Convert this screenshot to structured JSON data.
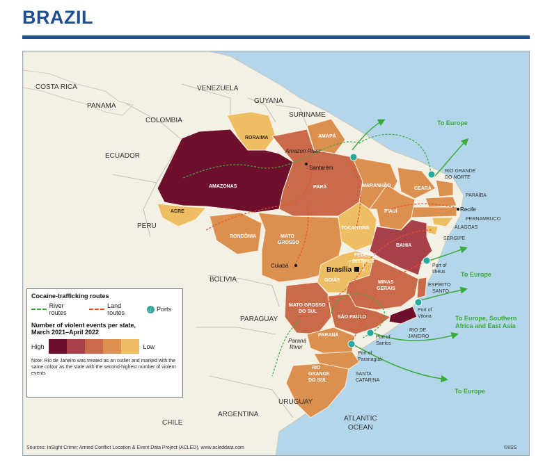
{
  "title": "BRAZIL",
  "countries": {
    "costa_rica": "COSTA RICA",
    "panama": "PANAMA",
    "venezuela": "VENEZUELA",
    "guyana": "GUYANA",
    "suriname": "SURINAME",
    "colombia": "COLOMBIA",
    "ecuador": "ECUADOR",
    "peru": "PERU",
    "bolivia": "BOLIVIA",
    "paraguay": "PARAGUAY",
    "chile": "CHILE",
    "argentina": "ARGENTINA",
    "uruguay": "URUGUAY",
    "atlantic_1": "ATLANTIC",
    "atlantic_2": "OCEAN"
  },
  "states": {
    "roraima": "RORAIMA",
    "amapa": "AMAPÁ",
    "amazonas": "AMAZONAS",
    "acre": "ACRE",
    "para": "PARÁ",
    "maranhao": "MARANHÃO",
    "ceara": "CEARÁ",
    "rgn_1": "RIO GRANDE",
    "rgn_2": "DO NORTE",
    "paraiba": "PARAÍBA",
    "pernambuco": "PERNAMBUCO",
    "alagoas": "ALAGOAS",
    "sergipe": "SERGIPE",
    "piaui": "PIAUÍ",
    "tocantins": "TOCANTINS",
    "rondonia": "RONDÔNIA",
    "mato_grosso_1": "MATO",
    "mato_grosso_2": "GROSSO",
    "bahia": "BAHIA",
    "federal_1": "FEDERAL",
    "federal_2": "DISTRICT",
    "goias": "GOIÁS",
    "minas_1": "MINAS",
    "minas_2": "GERAIS",
    "espirito_1": "ESPÍRITO",
    "espirito_2": "SANTO",
    "mgs_1": "MATO GROSSO",
    "mgs_2": "DO SUL",
    "sao_paulo": "SÃO PAULO",
    "rio_1": "RIO DE",
    "rio_2": "JANEIRO",
    "parana": "PARANÁ",
    "santa_1": "SANTA",
    "santa_2": "CATARINA",
    "rgs_1": "RIO",
    "rgs_2": "GRANDE",
    "rgs_3": "DO SUL"
  },
  "places": {
    "amazon_river": "Amazon River",
    "santarem": "Santarém",
    "recife": "Recife",
    "brasilia": "Brasília",
    "cuiaba": "Cuiabá",
    "parana_river_1": "Paraná",
    "parana_river_2": "River",
    "ilheus_1": "Port of",
    "ilheus_2": "Ilhéus",
    "vitoria_1": "Port of",
    "vitoria_2": "Vitória",
    "santos_1": "Port of",
    "santos_2": "Santos",
    "paranagua_1": "Port of",
    "paranagua_2": "Paranaguá"
  },
  "destinations": {
    "europe_top": "To Europe",
    "europe_mid": "To Europe",
    "europe_south_1": "To Europe, Southern",
    "europe_south_2": "Africa and East Asia",
    "europe_bottom": "To Europe"
  },
  "legend": {
    "title": "Cocaine-trafficking routes",
    "river": "River routes",
    "land": "Land routes",
    "ports": "Ports",
    "events_title_1": "Number of violent events per state,",
    "events_title_2": "March 2021–April 2022",
    "high": "High",
    "low": "Low",
    "note": "Note: Rio de Janeiro was treated as an outlier and marked with the same colour as the state with the second-highest number of violent events",
    "scale_colors": [
      "#6d0f2d",
      "#a8404a",
      "#c96a4a",
      "#dc9050",
      "#eebe63"
    ]
  },
  "colors": {
    "title": "#1f4f8f",
    "river_route": "#3aab3a",
    "land_route": "#e8502a",
    "port": "#2aa89a",
    "destination_text": "#3aab3a"
  },
  "sources": "Sources: InSight Crime; Armed Conflict Location & Event Data Project (ACLED), www.acleddata.com",
  "copyright": "©IISS"
}
